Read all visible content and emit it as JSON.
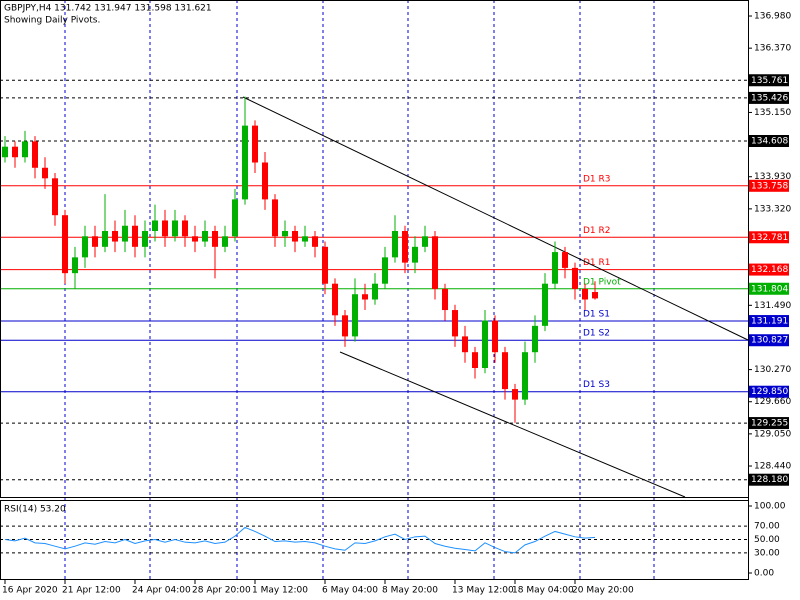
{
  "chart_data": {
    "type": "candlestick",
    "title": "GBPJPY,H4  131.742 131.947 131.598 131.621",
    "subtitle": "Showing Daily Pivots.",
    "categories": [
      "16 Apr 2020",
      null,
      null,
      null,
      null,
      null,
      "21 Apr 12:00",
      null,
      null,
      null,
      null,
      null,
      null,
      "24 Apr 04:00",
      null,
      null,
      null,
      null,
      null,
      "28 Apr 20:00",
      null,
      null,
      null,
      null,
      null,
      "1 May 12:00",
      null,
      null,
      null,
      null,
      null,
      null,
      "6 May 04:00",
      null,
      null,
      null,
      null,
      null,
      "8 May 20:00",
      null,
      null,
      null,
      null,
      null,
      null,
      "13 May 12:00",
      null,
      null,
      null,
      null,
      null,
      "18 May 04:00",
      null,
      null,
      null,
      null,
      null,
      "20 May 20:00",
      null,
      null
    ],
    "ohlc": [
      [
        134.3,
        134.7,
        134.2,
        134.5
      ],
      [
        134.5,
        134.6,
        134.1,
        134.3
      ],
      [
        134.3,
        134.8,
        134.2,
        134.6
      ],
      [
        134.6,
        134.7,
        133.9,
        134.1
      ],
      [
        134.1,
        134.3,
        133.7,
        133.9
      ],
      [
        133.9,
        134.0,
        133.0,
        133.2
      ],
      [
        133.2,
        133.3,
        131.9,
        132.1
      ],
      [
        132.1,
        132.6,
        131.8,
        132.4
      ],
      [
        132.4,
        133.0,
        132.2,
        132.8
      ],
      [
        132.8,
        133.0,
        132.4,
        132.6
      ],
      [
        132.6,
        133.6,
        132.5,
        132.9
      ],
      [
        132.9,
        133.1,
        132.5,
        132.7
      ],
      [
        132.7,
        133.3,
        132.5,
        133.0
      ],
      [
        133.0,
        133.2,
        132.4,
        132.6
      ],
      [
        132.6,
        133.1,
        132.4,
        132.9
      ],
      [
        132.9,
        133.4,
        132.7,
        133.1
      ],
      [
        133.1,
        133.3,
        132.6,
        132.8
      ],
      [
        132.8,
        133.3,
        132.7,
        133.1
      ],
      [
        133.1,
        133.2,
        132.6,
        132.8
      ],
      [
        132.8,
        133.0,
        132.5,
        132.7
      ],
      [
        132.7,
        133.1,
        132.6,
        132.9
      ],
      [
        132.9,
        133.0,
        132.0,
        132.6
      ],
      [
        132.6,
        133.0,
        132.5,
        132.8
      ],
      [
        132.8,
        133.7,
        132.7,
        133.5
      ],
      [
        133.5,
        135.45,
        133.4,
        134.9
      ],
      [
        134.9,
        135.0,
        134.0,
        134.2
      ],
      [
        134.2,
        134.4,
        133.3,
        133.5
      ],
      [
        133.5,
        133.6,
        132.6,
        132.8
      ],
      [
        132.8,
        133.1,
        132.6,
        132.9
      ],
      [
        132.9,
        133.0,
        132.5,
        132.7
      ],
      [
        132.7,
        133.0,
        132.6,
        132.8
      ],
      [
        132.8,
        132.9,
        132.4,
        132.6
      ],
      [
        132.6,
        132.7,
        131.7,
        131.9
      ],
      [
        131.9,
        132.0,
        131.1,
        131.3
      ],
      [
        131.3,
        131.4,
        130.7,
        130.9
      ],
      [
        130.9,
        132.0,
        130.8,
        131.7
      ],
      [
        131.7,
        131.9,
        131.4,
        131.6
      ],
      [
        131.6,
        132.1,
        131.5,
        131.9
      ],
      [
        131.9,
        132.6,
        131.8,
        132.4
      ],
      [
        132.4,
        133.2,
        132.3,
        132.9
      ],
      [
        132.9,
        133.0,
        132.1,
        132.3
      ],
      [
        132.3,
        132.8,
        132.1,
        132.6
      ],
      [
        132.6,
        133.0,
        132.5,
        132.8
      ],
      [
        132.8,
        132.9,
        131.6,
        131.8
      ],
      [
        131.8,
        131.9,
        131.2,
        131.4
      ],
      [
        131.4,
        131.5,
        130.7,
        130.9
      ],
      [
        130.9,
        131.1,
        130.4,
        130.6
      ],
      [
        130.6,
        130.7,
        130.1,
        130.3
      ],
      [
        130.3,
        131.4,
        130.2,
        131.2
      ],
      [
        131.2,
        131.3,
        130.4,
        130.6
      ],
      [
        130.6,
        130.7,
        129.7,
        129.9
      ],
      [
        129.9,
        130.0,
        129.26,
        129.7
      ],
      [
        129.7,
        130.8,
        129.6,
        130.6
      ],
      [
        130.6,
        131.3,
        130.4,
        131.1
      ],
      [
        131.1,
        132.1,
        131.0,
        131.9
      ],
      [
        131.9,
        132.7,
        131.8,
        132.5
      ],
      [
        132.5,
        132.6,
        132.0,
        132.2
      ],
      [
        132.2,
        132.3,
        131.6,
        131.8
      ],
      [
        131.8,
        131.9,
        131.4,
        131.6
      ],
      [
        131.742,
        131.947,
        131.598,
        131.621
      ]
    ],
    "up_color": "#00b000",
    "down_color": "#ff0000",
    "ylim": [
      127.852,
      137.284
    ],
    "yticks": [
      {
        "value": 136.98,
        "label": "136.980"
      },
      {
        "value": 136.37,
        "label": "136.370"
      },
      {
        "value": 135.15,
        "label": "135.150"
      },
      {
        "value": 133.93,
        "label": "133.930"
      },
      {
        "value": 133.32,
        "label": "133.320"
      },
      {
        "value": 131.49,
        "label": "131.490"
      },
      {
        "value": 130.27,
        "label": "130.270"
      },
      {
        "value": 129.66,
        "label": "129.660"
      },
      {
        "value": 129.05,
        "label": "129.050"
      },
      {
        "value": 128.44,
        "label": "128.440"
      }
    ],
    "levels": [
      {
        "value": 135.761,
        "color": "#000000",
        "dashed": true
      },
      {
        "value": 135.426,
        "color": "#000000",
        "dashed": true
      },
      {
        "value": 134.608,
        "color": "#000000",
        "dashed": true
      },
      {
        "value": 133.758,
        "color": "#ff0000",
        "dashed": false,
        "text": "D1 R3"
      },
      {
        "value": 132.781,
        "color": "#ff0000",
        "dashed": false,
        "text": "D1 R2"
      },
      {
        "value": 132.168,
        "color": "#ff0000",
        "dashed": false,
        "text": "D1 R1"
      },
      {
        "value": 131.804,
        "color": "#00b000",
        "dashed": false,
        "text": "D1 Pivot"
      },
      {
        "value": 131.191,
        "color": "#0000cc",
        "dashed": false,
        "text": "D1 S1"
      },
      {
        "value": 130.827,
        "color": "#0000cc",
        "dashed": false,
        "text": "D1 S2"
      },
      {
        "value": {
          "value": 129.85,
          "label": "129.850"
        },
        "color": "#0000cc",
        "dashed": false,
        "text": "D1 S3"
      },
      {
        "value": 129.255,
        "color": "#000000",
        "dashed": true
      },
      {
        "value": {
          "value": 128.18,
          "label": "128.180"
        },
        "color": "#000000",
        "dashed": true
      }
    ],
    "rsi": {
      "title": "RSI(14) 53.20",
      "color": "#1e90ff",
      "values": [
        50,
        48,
        52,
        45,
        44,
        40,
        36,
        40,
        45,
        43,
        47,
        45,
        50,
        44,
        48,
        50,
        46,
        50,
        46,
        45,
        48,
        44,
        46,
        55,
        68,
        62,
        55,
        47,
        48,
        46,
        47,
        45,
        40,
        36,
        34,
        45,
        44,
        48,
        54,
        58,
        50,
        54,
        55,
        44,
        40,
        37,
        35,
        33,
        45,
        38,
        32,
        30,
        42,
        47,
        55,
        62,
        58,
        54,
        52,
        53.2
      ],
      "ylim": [
        -10.45,
        108.96
      ],
      "yticks": [
        {
          "value": 100,
          "label": "100.00"
        },
        {
          "value": 70,
          "label": "70.00"
        },
        {
          "value": 50,
          "label": "50.00"
        },
        {
          "value": 30,
          "label": "30.00"
        },
        {
          "value": 0,
          "label": "0.00"
        }
      ]
    }
  }
}
